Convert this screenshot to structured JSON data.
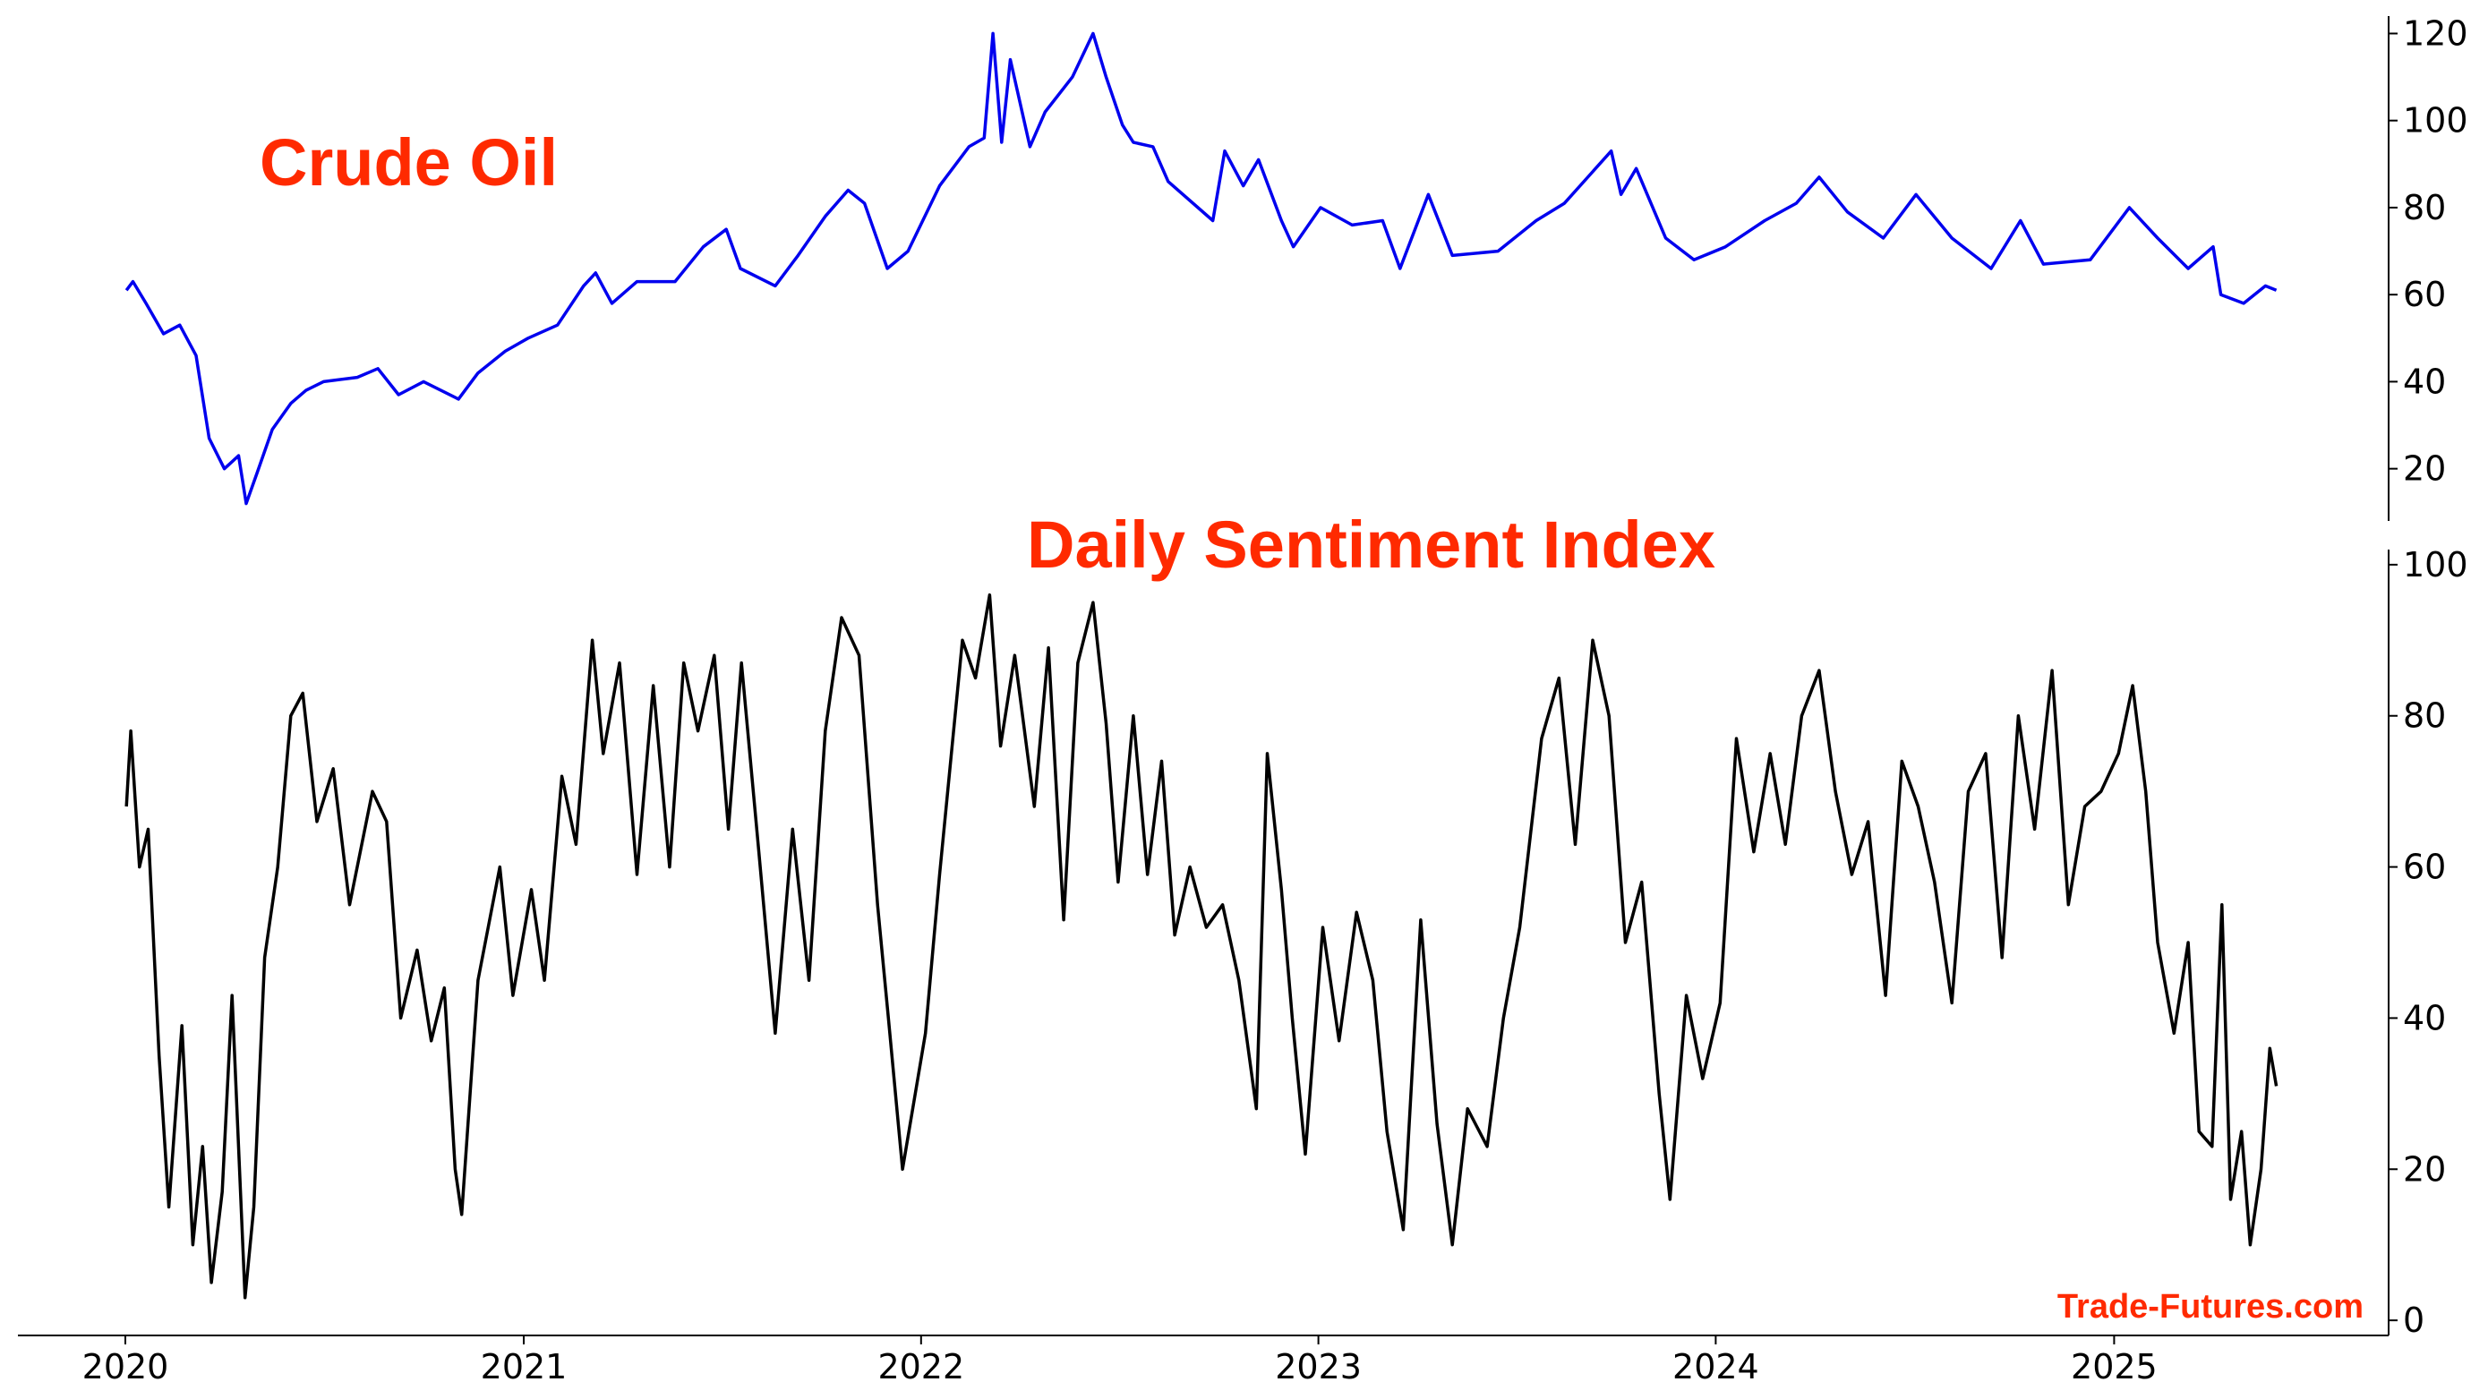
{
  "chart_data": [
    {
      "type": "line",
      "title": "Crude Oil",
      "title_color": "#ff2a00",
      "line_color": "#0000ee",
      "y_axis_side": "right",
      "ylim": [
        8,
        124
      ],
      "yticks": [
        "20",
        "40",
        "60",
        "80",
        "100",
        "120"
      ],
      "x_date_range": [
        "2020-01-01",
        "2025-06-01"
      ],
      "series": [
        {
          "points": [
            [
              "2020-01-02",
              61
            ],
            [
              "2020-01-08",
              63
            ],
            [
              "2020-01-20",
              58
            ],
            [
              "2020-02-05",
              51
            ],
            [
              "2020-02-20",
              53
            ],
            [
              "2020-03-06",
              46
            ],
            [
              "2020-03-18",
              27
            ],
            [
              "2020-04-01",
              20
            ],
            [
              "2020-04-14",
              23
            ],
            [
              "2020-04-21",
              12
            ],
            [
              "2020-05-01",
              19
            ],
            [
              "2020-05-15",
              29
            ],
            [
              "2020-06-01",
              35
            ],
            [
              "2020-06-15",
              38
            ],
            [
              "2020-07-01",
              40
            ],
            [
              "2020-08-01",
              41
            ],
            [
              "2020-08-20",
              43
            ],
            [
              "2020-09-08",
              37
            ],
            [
              "2020-10-01",
              40
            ],
            [
              "2020-11-02",
              36
            ],
            [
              "2020-11-20",
              42
            ],
            [
              "2020-12-15",
              47
            ],
            [
              "2021-01-05",
              50
            ],
            [
              "2021-02-01",
              53
            ],
            [
              "2021-02-25",
              62
            ],
            [
              "2021-03-08",
              65
            ],
            [
              "2021-03-23",
              58
            ],
            [
              "2021-04-15",
              63
            ],
            [
              "2021-05-20",
              63
            ],
            [
              "2021-06-15",
              71
            ],
            [
              "2021-07-06",
              75
            ],
            [
              "2021-07-19",
              66
            ],
            [
              "2021-08-20",
              62
            ],
            [
              "2021-09-10",
              69
            ],
            [
              "2021-10-05",
              78
            ],
            [
              "2021-10-26",
              84
            ],
            [
              "2021-11-10",
              81
            ],
            [
              "2021-12-01",
              66
            ],
            [
              "2021-12-20",
              70
            ],
            [
              "2022-01-18",
              85
            ],
            [
              "2022-02-14",
              94
            ],
            [
              "2022-02-28",
              96
            ],
            [
              "2022-03-08",
              120
            ],
            [
              "2022-03-16",
              95
            ],
            [
              "2022-03-24",
              114
            ],
            [
              "2022-04-11",
              94
            ],
            [
              "2022-04-25",
              102
            ],
            [
              "2022-05-20",
              110
            ],
            [
              "2022-06-08",
              120
            ],
            [
              "2022-06-20",
              110
            ],
            [
              "2022-07-05",
              99
            ],
            [
              "2022-07-15",
              95
            ],
            [
              "2022-08-02",
              94
            ],
            [
              "2022-08-16",
              86
            ],
            [
              "2022-09-26",
              77
            ],
            [
              "2022-10-07",
              93
            ],
            [
              "2022-10-24",
              85
            ],
            [
              "2022-11-07",
              91
            ],
            [
              "2022-11-28",
              77
            ],
            [
              "2022-12-09",
              71
            ],
            [
              "2023-01-03",
              80
            ],
            [
              "2023-02-01",
              76
            ],
            [
              "2023-03-01",
              77
            ],
            [
              "2023-03-17",
              66
            ],
            [
              "2023-04-12",
              83
            ],
            [
              "2023-05-04",
              69
            ],
            [
              "2023-06-15",
              70
            ],
            [
              "2023-07-20",
              77
            ],
            [
              "2023-08-15",
              81
            ],
            [
              "2023-09-27",
              93
            ],
            [
              "2023-10-06",
              83
            ],
            [
              "2023-10-20",
              89
            ],
            [
              "2023-11-16",
              73
            ],
            [
              "2023-12-12",
              68
            ],
            [
              "2024-01-10",
              71
            ],
            [
              "2024-02-15",
              77
            ],
            [
              "2024-03-15",
              81
            ],
            [
              "2024-04-05",
              87
            ],
            [
              "2024-05-01",
              79
            ],
            [
              "2024-06-03",
              73
            ],
            [
              "2024-07-03",
              83
            ],
            [
              "2024-08-05",
              73
            ],
            [
              "2024-09-10",
              66
            ],
            [
              "2024-10-07",
              77
            ],
            [
              "2024-10-28",
              67
            ],
            [
              "2024-12-10",
              68
            ],
            [
              "2025-01-15",
              80
            ],
            [
              "2025-02-10",
              73
            ],
            [
              "2025-03-10",
              66
            ],
            [
              "2025-04-02",
              71
            ],
            [
              "2025-04-09",
              60
            ],
            [
              "2025-04-30",
              58
            ],
            [
              "2025-05-20",
              62
            ],
            [
              "2025-05-30",
              61
            ]
          ]
        }
      ]
    },
    {
      "type": "line",
      "title": "Daily Sentiment Index",
      "title_color": "#ff2a00",
      "line_color": "#000000",
      "y_axis_side": "right",
      "ylim": [
        -2,
        102
      ],
      "yticks": [
        "0",
        "20",
        "40",
        "60",
        "80",
        "100"
      ],
      "x_date_range": [
        "2020-01-01",
        "2025-06-01"
      ],
      "xticks": [
        "2020",
        "2021",
        "2022",
        "2023",
        "2024",
        "2025"
      ],
      "series": [
        {
          "points": [
            [
              "2020-01-02",
              68
            ],
            [
              "2020-01-06",
              78
            ],
            [
              "2020-01-14",
              60
            ],
            [
              "2020-01-22",
              65
            ],
            [
              "2020-02-01",
              35
            ],
            [
              "2020-02-10",
              15
            ],
            [
              "2020-02-22",
              39
            ],
            [
              "2020-03-03",
              10
            ],
            [
              "2020-03-12",
              23
            ],
            [
              "2020-03-20",
              5
            ],
            [
              "2020-03-30",
              17
            ],
            [
              "2020-04-08",
              43
            ],
            [
              "2020-04-20",
              3
            ],
            [
              "2020-04-28",
              15
            ],
            [
              "2020-05-08",
              48
            ],
            [
              "2020-05-20",
              60
            ],
            [
              "2020-06-01",
              80
            ],
            [
              "2020-06-12",
              83
            ],
            [
              "2020-06-25",
              66
            ],
            [
              "2020-07-10",
              73
            ],
            [
              "2020-07-25",
              55
            ],
            [
              "2020-08-15",
              70
            ],
            [
              "2020-08-28",
              66
            ],
            [
              "2020-09-10",
              40
            ],
            [
              "2020-09-25",
              49
            ],
            [
              "2020-10-08",
              37
            ],
            [
              "2020-10-20",
              44
            ],
            [
              "2020-10-30",
              20
            ],
            [
              "2020-11-05",
              14
            ],
            [
              "2020-11-20",
              45
            ],
            [
              "2020-12-10",
              60
            ],
            [
              "2020-12-22",
              43
            ],
            [
              "2021-01-08",
              57
            ],
            [
              "2021-01-20",
              45
            ],
            [
              "2021-02-05",
              72
            ],
            [
              "2021-02-18",
              63
            ],
            [
              "2021-03-05",
              90
            ],
            [
              "2021-03-15",
              75
            ],
            [
              "2021-03-30",
              87
            ],
            [
              "2021-04-15",
              59
            ],
            [
              "2021-04-30",
              84
            ],
            [
              "2021-05-15",
              60
            ],
            [
              "2021-05-28",
              87
            ],
            [
              "2021-06-10",
              78
            ],
            [
              "2021-06-25",
              88
            ],
            [
              "2021-07-08",
              65
            ],
            [
              "2021-07-20",
              87
            ],
            [
              "2021-08-05",
              62
            ],
            [
              "2021-08-20",
              38
            ],
            [
              "2021-09-05",
              65
            ],
            [
              "2021-09-20",
              45
            ],
            [
              "2021-10-05",
              78
            ],
            [
              "2021-10-20",
              93
            ],
            [
              "2021-11-05",
              88
            ],
            [
              "2021-11-22",
              55
            ],
            [
              "2021-12-02",
              40
            ],
            [
              "2021-12-15",
              20
            ],
            [
              "2022-01-05",
              38
            ],
            [
              "2022-01-18",
              59
            ],
            [
              "2022-02-08",
              90
            ],
            [
              "2022-02-20",
              85
            ],
            [
              "2022-03-05",
              96
            ],
            [
              "2022-03-15",
              76
            ],
            [
              "2022-03-28",
              88
            ],
            [
              "2022-04-15",
              68
            ],
            [
              "2022-04-28",
              89
            ],
            [
              "2022-05-12",
              53
            ],
            [
              "2022-05-25",
              87
            ],
            [
              "2022-06-08",
              95
            ],
            [
              "2022-06-20",
              79
            ],
            [
              "2022-07-01",
              58
            ],
            [
              "2022-07-15",
              80
            ],
            [
              "2022-07-28",
              59
            ],
            [
              "2022-08-10",
              74
            ],
            [
              "2022-08-22",
              51
            ],
            [
              "2022-09-05",
              60
            ],
            [
              "2022-09-20",
              52
            ],
            [
              "2022-10-05",
              55
            ],
            [
              "2022-10-20",
              45
            ],
            [
              "2022-11-05",
              28
            ],
            [
              "2022-11-15",
              75
            ],
            [
              "2022-11-28",
              57
            ],
            [
              "2022-12-08",
              40
            ],
            [
              "2022-12-20",
              22
            ],
            [
              "2023-01-05",
              52
            ],
            [
              "2023-01-20",
              37
            ],
            [
              "2023-02-05",
              54
            ],
            [
              "2023-02-20",
              45
            ],
            [
              "2023-03-05",
              25
            ],
            [
              "2023-03-20",
              12
            ],
            [
              "2023-04-05",
              53
            ],
            [
              "2023-04-20",
              26
            ],
            [
              "2023-05-04",
              10
            ],
            [
              "2023-05-18",
              28
            ],
            [
              "2023-06-05",
              23
            ],
            [
              "2023-06-20",
              40
            ],
            [
              "2023-07-05",
              52
            ],
            [
              "2023-07-25",
              77
            ],
            [
              "2023-08-10",
              85
            ],
            [
              "2023-08-25",
              63
            ],
            [
              "2023-09-10",
              90
            ],
            [
              "2023-09-25",
              80
            ],
            [
              "2023-10-10",
              50
            ],
            [
              "2023-10-25",
              58
            ],
            [
              "2023-11-10",
              30
            ],
            [
              "2023-11-20",
              16
            ],
            [
              "2023-12-05",
              43
            ],
            [
              "2023-12-20",
              32
            ],
            [
              "2024-01-05",
              42
            ],
            [
              "2024-01-20",
              77
            ],
            [
              "2024-02-05",
              62
            ],
            [
              "2024-02-20",
              75
            ],
            [
              "2024-03-05",
              63
            ],
            [
              "2024-03-20",
              80
            ],
            [
              "2024-04-05",
              86
            ],
            [
              "2024-04-20",
              70
            ],
            [
              "2024-05-05",
              59
            ],
            [
              "2024-05-20",
              66
            ],
            [
              "2024-06-05",
              43
            ],
            [
              "2024-06-20",
              74
            ],
            [
              "2024-07-05",
              68
            ],
            [
              "2024-07-20",
              58
            ],
            [
              "2024-08-05",
              42
            ],
            [
              "2024-08-20",
              70
            ],
            [
              "2024-09-05",
              75
            ],
            [
              "2024-09-20",
              48
            ],
            [
              "2024-10-05",
              80
            ],
            [
              "2024-10-20",
              65
            ],
            [
              "2024-11-05",
              86
            ],
            [
              "2024-11-20",
              55
            ],
            [
              "2024-12-05",
              68
            ],
            [
              "2024-12-20",
              70
            ],
            [
              "2025-01-05",
              75
            ],
            [
              "2025-01-18",
              84
            ],
            [
              "2025-01-30",
              70
            ],
            [
              "2025-02-10",
              50
            ],
            [
              "2025-02-25",
              38
            ],
            [
              "2025-03-10",
              50
            ],
            [
              "2025-03-20",
              25
            ],
            [
              "2025-04-01",
              23
            ],
            [
              "2025-04-10",
              55
            ],
            [
              "2025-04-18",
              16
            ],
            [
              "2025-04-28",
              25
            ],
            [
              "2025-05-06",
              10
            ],
            [
              "2025-05-16",
              20
            ],
            [
              "2025-05-24",
              36
            ],
            [
              "2025-05-30",
              31
            ]
          ]
        }
      ]
    }
  ],
  "watermark": {
    "text": "Trade-Futures.com",
    "color": "#ff2a00"
  }
}
